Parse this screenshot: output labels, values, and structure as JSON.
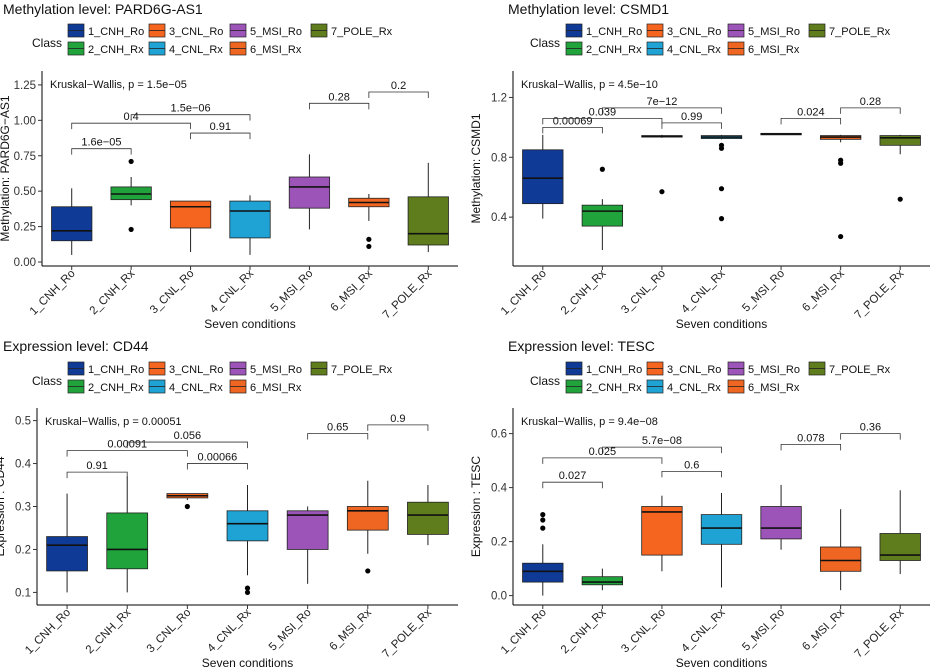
{
  "colors": {
    "1_CNH_Ro": "#0f3a96",
    "2_CNH_Rx": "#21a33b",
    "3_CNL_Ro": "#f5651f",
    "4_CNL_Rx": "#1ea3d4",
    "5_MSI_Ro": "#9c54b8",
    "6_MSI_Rx": "#ee6621",
    "7_POLE_Rx": "#5f7d1c"
  },
  "chart_data": [
    {
      "type": "boxplot",
      "title": "Methylation level: PARD6G-AS1",
      "ylabel": "Methylation: PARD6G−AS1",
      "xlabel": "Seven conditions",
      "ylim": [
        0,
        1.32
      ],
      "yticks": [
        0.0,
        0.25,
        0.5,
        0.75,
        1.0,
        1.25
      ],
      "ytick_labels": [
        "0.00",
        "0.25",
        "0.50",
        "0.75",
        "1.00",
        "1.25"
      ],
      "legend_title": "Class",
      "legend_row1": [
        "1_CNH_Ro",
        "3_CNL_Ro",
        "5_MSI_Ro",
        "7_POLE_Rx"
      ],
      "legend_row2": [
        "2_CNH_Rx",
        "4_CNL_Rx",
        "6_MSI_Rx"
      ],
      "test_label": "Kruskal−Wallis, p = 1.5e−05",
      "categories": [
        "1_CNH_Ro",
        "2_CNH_Rx",
        "3_CNL_Ro",
        "4_CNL_Rx",
        "5_MSI_Ro",
        "6_MSI_Rx",
        "7_POLE_Rx"
      ],
      "boxes": [
        {
          "min": 0.05,
          "q1": 0.15,
          "median": 0.22,
          "q3": 0.39,
          "max": 0.52,
          "outliers": []
        },
        {
          "min": 0.4,
          "q1": 0.44,
          "median": 0.48,
          "q3": 0.53,
          "max": 0.6,
          "outliers": [
            0.71,
            0.23
          ]
        },
        {
          "min": 0.07,
          "q1": 0.24,
          "median": 0.39,
          "q3": 0.43,
          "max": 0.43,
          "outliers": []
        },
        {
          "min": 0.05,
          "q1": 0.17,
          "median": 0.36,
          "q3": 0.43,
          "max": 0.47,
          "outliers": []
        },
        {
          "min": 0.23,
          "q1": 0.38,
          "median": 0.53,
          "q3": 0.6,
          "max": 0.76,
          "outliers": []
        },
        {
          "min": 0.29,
          "q1": 0.39,
          "median": 0.42,
          "q3": 0.45,
          "max": 0.48,
          "outliers": [
            0.16,
            0.11
          ]
        },
        {
          "min": 0.07,
          "q1": 0.12,
          "median": 0.2,
          "q3": 0.46,
          "max": 0.7,
          "outliers": []
        }
      ],
      "brackets": [
        {
          "from": 1,
          "to": 2,
          "y": 0.8,
          "label": "1.6e−05"
        },
        {
          "from": 1,
          "to": 3,
          "y": 0.98,
          "label": "0.4"
        },
        {
          "from": 3,
          "to": 4,
          "y": 0.91,
          "label": "0.91"
        },
        {
          "from": 2,
          "to": 4,
          "y": 1.04,
          "label": "1.5e−06"
        },
        {
          "from": 5,
          "to": 6,
          "y": 1.12,
          "label": "0.28"
        },
        {
          "from": 6,
          "to": 7,
          "y": 1.2,
          "label": "0.2"
        }
      ]
    },
    {
      "type": "boxplot",
      "title": "Methylation level: CSMD1",
      "ylabel": "Methylation: CSMD1",
      "xlabel": "Seven conditions",
      "ylim": [
        0.1,
        1.35
      ],
      "yticks": [
        0.4,
        0.8,
        1.2
      ],
      "ytick_labels": [
        "0.4",
        "0.8",
        "1.2"
      ],
      "legend_title": "Class",
      "legend_row1": [
        "1_CNH_Ro",
        "3_CNL_Ro",
        "5_MSI_Ro",
        "7_POLE_Rx"
      ],
      "legend_row2": [
        "2_CNH_Rx",
        "4_CNL_Rx",
        "6_MSI_Rx"
      ],
      "test_label": "Kruskal−Wallis, p = 4.5e−10",
      "categories": [
        "1_CNH_Ro",
        "2_CNH_Rx",
        "3_CNL_Ro",
        "4_CNL_Rx",
        "5_MSI_Ro",
        "6_MSI_Rx",
        "7_POLE_Rx"
      ],
      "boxes": [
        {
          "min": 0.39,
          "q1": 0.49,
          "median": 0.66,
          "q3": 0.85,
          "max": 0.95,
          "outliers": []
        },
        {
          "min": 0.18,
          "q1": 0.34,
          "median": 0.44,
          "q3": 0.48,
          "max": 0.52,
          "outliers": [
            0.72
          ]
        },
        {
          "min": 0.93,
          "q1": 0.935,
          "median": 0.94,
          "q3": 0.945,
          "max": 0.95,
          "outliers": [
            0.57
          ]
        },
        {
          "min": 0.92,
          "q1": 0.925,
          "median": 0.935,
          "q3": 0.945,
          "max": 0.95,
          "outliers": [
            0.88,
            0.86,
            0.59,
            0.39
          ]
        },
        {
          "min": 0.95,
          "q1": 0.95,
          "median": 0.955,
          "q3": 0.96,
          "max": 0.96,
          "outliers": []
        },
        {
          "min": 0.9,
          "q1": 0.92,
          "median": 0.935,
          "q3": 0.945,
          "max": 0.95,
          "outliers": [
            0.78,
            0.76,
            0.27
          ]
        },
        {
          "min": 0.82,
          "q1": 0.88,
          "median": 0.93,
          "q3": 0.945,
          "max": 0.95,
          "outliers": [
            0.52
          ]
        }
      ],
      "brackets": [
        {
          "from": 1,
          "to": 2,
          "y": 1.0,
          "label": "0.00069"
        },
        {
          "from": 1,
          "to": 3,
          "y": 1.06,
          "label": "0.039"
        },
        {
          "from": 3,
          "to": 4,
          "y": 1.03,
          "label": "0.99"
        },
        {
          "from": 2,
          "to": 4,
          "y": 1.13,
          "label": "7e−12"
        },
        {
          "from": 5,
          "to": 6,
          "y": 1.06,
          "label": "0.024"
        },
        {
          "from": 6,
          "to": 7,
          "y": 1.13,
          "label": "0.28"
        }
      ]
    },
    {
      "type": "boxplot",
      "title": "Expression level:  CD44",
      "ylabel": "Expression : CD44",
      "xlabel": "Seven conditions",
      "ylim": [
        0.08,
        0.52
      ],
      "yticks": [
        0.1,
        0.2,
        0.3,
        0.4,
        0.5
      ],
      "ytick_labels": [
        "0.1",
        "0.2",
        "0.3",
        "0.4",
        "0.5"
      ],
      "legend_title": "Class",
      "legend_row1": [
        "1_CNH_Ro",
        "3_CNL_Ro",
        "5_MSI_Ro",
        "7_POLE_Rx"
      ],
      "legend_row2": [
        "2_CNH_Rx",
        "4_CNL_Rx",
        "6_MSI_Rx"
      ],
      "test_label": "Kruskal−Wallis, p = 0.00051",
      "categories": [
        "1_CNH_Ro",
        "2_CNH_Rx",
        "3_CNL_Ro",
        "4_CNL_Rx",
        "5_MSI_Ro",
        "6_MSI_Rx",
        "7_POLE_Rx"
      ],
      "boxes": [
        {
          "min": 0.1,
          "q1": 0.15,
          "median": 0.21,
          "q3": 0.23,
          "max": 0.33,
          "outliers": []
        },
        {
          "min": 0.1,
          "q1": 0.155,
          "median": 0.2,
          "q3": 0.285,
          "max": 0.37,
          "outliers": []
        },
        {
          "min": 0.315,
          "q1": 0.32,
          "median": 0.325,
          "q3": 0.33,
          "max": 0.33,
          "outliers": [
            0.3
          ]
        },
        {
          "min": 0.14,
          "q1": 0.22,
          "median": 0.26,
          "q3": 0.29,
          "max": 0.35,
          "outliers": [
            0.11,
            0.1
          ]
        },
        {
          "min": 0.12,
          "q1": 0.2,
          "median": 0.28,
          "q3": 0.29,
          "max": 0.3,
          "outliers": []
        },
        {
          "min": 0.19,
          "q1": 0.245,
          "median": 0.29,
          "q3": 0.3,
          "max": 0.36,
          "outliers": [
            0.15
          ]
        },
        {
          "min": 0.21,
          "q1": 0.235,
          "median": 0.28,
          "q3": 0.31,
          "max": 0.35,
          "outliers": []
        }
      ],
      "brackets": [
        {
          "from": 1,
          "to": 2,
          "y": 0.38,
          "label": "0.91"
        },
        {
          "from": 1,
          "to": 3,
          "y": 0.43,
          "label": "0.00091"
        },
        {
          "from": 3,
          "to": 4,
          "y": 0.4,
          "label": "0.00066"
        },
        {
          "from": 2,
          "to": 4,
          "y": 0.45,
          "label": "0.056"
        },
        {
          "from": 5,
          "to": 6,
          "y": 0.47,
          "label": "0.65"
        },
        {
          "from": 6,
          "to": 7,
          "y": 0.49,
          "label": "0.9"
        }
      ]
    },
    {
      "type": "boxplot",
      "title": "Expression level:  TESC",
      "ylabel": "Expression : TESC",
      "xlabel": "Seven conditions",
      "ylim": [
        -0.02,
        0.68
      ],
      "yticks": [
        0.0,
        0.2,
        0.4,
        0.6
      ],
      "ytick_labels": [
        "0.0",
        "0.2",
        "0.4",
        "0.6"
      ],
      "legend_title": "Class",
      "legend_row1": [
        "1_CNH_Ro",
        "3_CNL_Ro",
        "5_MSI_Ro",
        "7_POLE_Rx"
      ],
      "legend_row2": [
        "2_CNH_Rx",
        "4_CNL_Rx",
        "6_MSI_Rx"
      ],
      "test_label": "Kruskal−Wallis, p = 9.4e−08",
      "categories": [
        "1_CNH_Ro",
        "2_CNH_Rx",
        "3_CNL_Ro",
        "4_CNL_Rx",
        "5_MSI_Ro",
        "6_MSI_Rx",
        "7_POLE_Rx"
      ],
      "boxes": [
        {
          "min": 0.0,
          "q1": 0.05,
          "median": 0.09,
          "q3": 0.12,
          "max": 0.19,
          "outliers": [
            0.3,
            0.28,
            0.25
          ]
        },
        {
          "min": 0.02,
          "q1": 0.04,
          "median": 0.05,
          "q3": 0.07,
          "max": 0.1,
          "outliers": []
        },
        {
          "min": 0.09,
          "q1": 0.15,
          "median": 0.31,
          "q3": 0.33,
          "max": 0.37,
          "outliers": []
        },
        {
          "min": 0.03,
          "q1": 0.19,
          "median": 0.25,
          "q3": 0.3,
          "max": 0.38,
          "outliers": []
        },
        {
          "min": 0.17,
          "q1": 0.21,
          "median": 0.25,
          "q3": 0.33,
          "max": 0.41,
          "outliers": []
        },
        {
          "min": 0.02,
          "q1": 0.09,
          "median": 0.13,
          "q3": 0.18,
          "max": 0.32,
          "outliers": []
        },
        {
          "min": 0.08,
          "q1": 0.13,
          "median": 0.15,
          "q3": 0.23,
          "max": 0.39,
          "outliers": []
        }
      ],
      "brackets": [
        {
          "from": 1,
          "to": 2,
          "y": 0.42,
          "label": "0.027"
        },
        {
          "from": 1,
          "to": 3,
          "y": 0.51,
          "label": "0.025"
        },
        {
          "from": 3,
          "to": 4,
          "y": 0.46,
          "label": "0.6"
        },
        {
          "from": 2,
          "to": 4,
          "y": 0.55,
          "label": "5.7e−08"
        },
        {
          "from": 5,
          "to": 6,
          "y": 0.56,
          "label": "0.078"
        },
        {
          "from": 6,
          "to": 7,
          "y": 0.6,
          "label": "0.36"
        }
      ]
    }
  ]
}
